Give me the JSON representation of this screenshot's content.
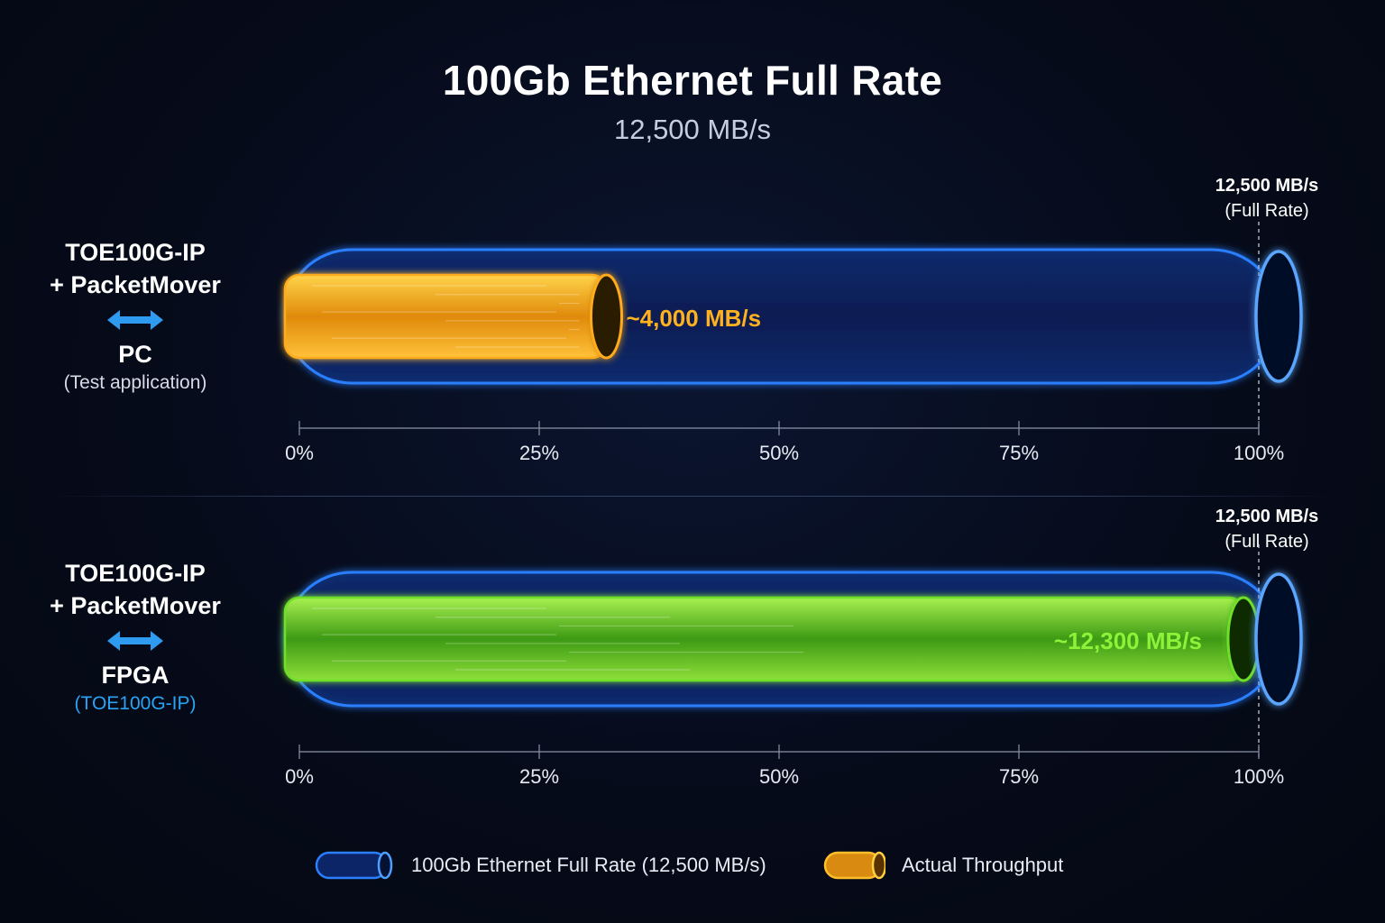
{
  "header": {
    "title": "100Gb Ethernet Full Rate",
    "subtitle": "12,500 MB/s"
  },
  "panels": [
    {
      "line1": "TOE100G-IP",
      "line2": "+ PacketMover",
      "target": "PC",
      "target_sub": "(Test application)",
      "fullrate_value": "12,500 MB/s",
      "fullrate_note": "(Full Rate)",
      "value_label": "~4,000 MB/s"
    },
    {
      "line1": "TOE100G-IP",
      "line2": "+ PacketMover",
      "target": "FPGA",
      "target_sub": "(TOE100G-IP)",
      "fullrate_value": "12,500 MB/s",
      "fullrate_note": "(Full Rate)",
      "value_label": "~12,300 MB/s"
    }
  ],
  "chart_data": [
    {
      "type": "bar",
      "orientation": "horizontal",
      "categories": [
        "TOE100G-IP + PacketMover ↔ PC"
      ],
      "series": [
        {
          "name": "100Gb Ethernet Full Rate (12,500 MB/s)",
          "values": [
            12500
          ]
        },
        {
          "name": "Actual Throughput",
          "values": [
            4000
          ]
        }
      ],
      "data_labels": [
        "~4,000 MB/s"
      ],
      "x_ticks": [
        "0%",
        "25%",
        "50%",
        "75%",
        "100%"
      ],
      "xlim": [
        0,
        12500
      ],
      "grid": false,
      "colors": {
        "full_rate": "#2a7fff",
        "throughput": "#ffab1a"
      }
    },
    {
      "type": "bar",
      "orientation": "horizontal",
      "categories": [
        "TOE100G-IP + PacketMover ↔ FPGA"
      ],
      "series": [
        {
          "name": "100Gb Ethernet Full Rate (12,500 MB/s)",
          "values": [
            12500
          ]
        },
        {
          "name": "Actual Throughput",
          "values": [
            12300
          ]
        }
      ],
      "data_labels": [
        "~12,300 MB/s"
      ],
      "x_ticks": [
        "0%",
        "25%",
        "50%",
        "75%",
        "100%"
      ],
      "xlim": [
        0,
        12500
      ],
      "grid": false,
      "colors": {
        "full_rate": "#2a7fff",
        "throughput": "#6ee02a"
      }
    }
  ],
  "legend": {
    "placement": "bottom-center",
    "items": [
      {
        "label": "100Gb Ethernet Full Rate (12,500 MB/s)",
        "color": "#2a7fff"
      },
      {
        "label": "Actual Throughput",
        "color": "#ffab1a"
      }
    ]
  },
  "icons": {
    "link_arrow": "double-headed-arrow-icon"
  }
}
